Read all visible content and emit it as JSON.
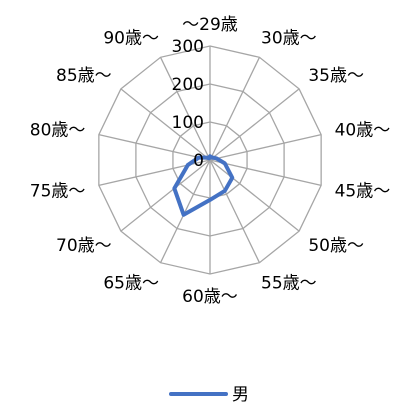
{
  "chart_data": {
    "type": "radar",
    "categories": [
      "～29歳",
      "30歳～",
      "35歳～",
      "40歳～",
      "45歳～",
      "50歳～",
      "55歳～",
      "60歳～",
      "65歳～",
      "70歳～",
      "75歳～",
      "80歳～",
      "85歳～",
      "90歳～"
    ],
    "series": [
      {
        "name": "男",
        "color": "#4472c4",
        "values": [
          10,
          8,
          10,
          18,
          40,
          75,
          90,
          105,
          160,
          120,
          60,
          30,
          10,
          5
        ]
      }
    ],
    "rlim": [
      0,
      300
    ],
    "ticks": [
      0,
      100,
      200,
      300
    ],
    "tick_labels": [
      "0",
      "100",
      "200",
      "300"
    ],
    "grid": true,
    "legend_position": "bottom",
    "colors": {
      "grid": "#a6a6a6",
      "series": "#4472c4",
      "text": "#000000"
    }
  }
}
